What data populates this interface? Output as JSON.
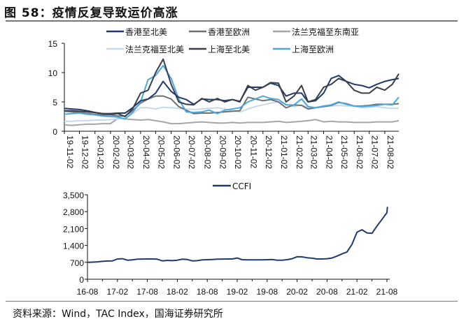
{
  "title": "图 58：疫情反复导致运价高涨",
  "source": "资料来源：Wind，TAC Index，国海证券研究所",
  "chart_data": [
    {
      "type": "line",
      "title": "",
      "xlabel": "",
      "ylabel": "",
      "ylim": [
        0,
        15
      ],
      "yticks": [
        "0",
        "5",
        "10",
        "15"
      ],
      "xticks": [
        "19-11-02",
        "19-12-02",
        "20-01-02",
        "20-02-02",
        "20-03-02",
        "20-04-02",
        "20-05-02",
        "20-06-02",
        "20-07-02",
        "20-08-02",
        "20-09-02",
        "20-10-02",
        "20-11-02",
        "20-12-02",
        "21-01-02",
        "21-02-02",
        "21-03-02",
        "21-04-02",
        "21-05-02",
        "21-06-02",
        "21-07-02",
        "21-08-02"
      ],
      "xlim": [
        "2019-11-02",
        "2021-08-30"
      ],
      "grid": false,
      "legend": "top",
      "x": [
        "2019-11-02",
        "2019-11-17",
        "2019-12-02",
        "2019-12-17",
        "2020-01-02",
        "2020-01-17",
        "2020-02-02",
        "2020-02-17",
        "2020-03-02",
        "2020-03-17",
        "2020-04-02",
        "2020-04-17",
        "2020-05-02",
        "2020-05-17",
        "2020-06-02",
        "2020-06-17",
        "2020-07-02",
        "2020-07-17",
        "2020-08-02",
        "2020-08-17",
        "2020-09-02",
        "2020-09-17",
        "2020-10-02",
        "2020-10-17",
        "2020-11-02",
        "2020-11-17",
        "2020-12-02",
        "2020-12-17",
        "2021-01-02",
        "2021-01-17",
        "2021-02-02",
        "2021-02-17",
        "2021-03-02",
        "2021-03-17",
        "2021-04-02",
        "2021-04-17",
        "2021-05-02",
        "2021-05-17",
        "2021-06-02",
        "2021-06-17",
        "2021-07-02",
        "2021-07-17",
        "2021-08-02",
        "2021-08-17",
        "2021-08-30"
      ],
      "series": [
        {
          "name": "香港至北美",
          "color": "#1f3a6e",
          "values": [
            3.9,
            3.8,
            3.7,
            3.5,
            3.2,
            3.0,
            3.0,
            3.1,
            3.1,
            4.0,
            5.2,
            5.5,
            6.5,
            8.5,
            6.8,
            5.8,
            5.4,
            4.6,
            5.5,
            5.4,
            5.4,
            5.2,
            5.4,
            5.1,
            7.5,
            7.5,
            7.5,
            8.2,
            7.8,
            6.0,
            6.5,
            6.5,
            5.0,
            5.2,
            6.5,
            9.0,
            9.5,
            8.5,
            8.0,
            7.8,
            7.4,
            8.0,
            8.5,
            8.8,
            9.0
          ]
        },
        {
          "name": "香港至欧洲",
          "color": "#707070",
          "values": [
            3.4,
            3.3,
            3.2,
            3.0,
            2.9,
            2.8,
            2.8,
            2.6,
            2.6,
            3.5,
            4.8,
            5.5,
            6.0,
            6.0,
            5.5,
            4.2,
            3.6,
            3.0,
            3.1,
            3.1,
            3.2,
            3.3,
            3.4,
            3.5,
            5.8,
            5.5,
            5.2,
            5.4,
            5.0,
            4.0,
            4.5,
            4.4,
            3.8,
            4.0,
            4.2,
            4.4,
            4.9,
            4.7,
            4.3,
            4.3,
            4.4,
            4.6,
            4.6,
            4.6,
            4.7
          ]
        },
        {
          "name": "法兰克福至东南亚",
          "color": "#a6a6a6",
          "values": [
            1.1,
            1.0,
            1.1,
            1.2,
            1.2,
            1.3,
            1.3,
            2.2,
            2.1,
            2.0,
            1.9,
            2.0,
            1.8,
            1.6,
            1.3,
            1.3,
            1.4,
            1.5,
            1.6,
            1.5,
            1.4,
            1.4,
            1.5,
            1.4,
            1.5,
            1.5,
            1.5,
            1.6,
            1.7,
            1.5,
            1.6,
            1.7,
            1.8,
            2.0,
            1.6,
            1.7,
            1.6,
            1.6,
            1.5,
            1.5,
            1.5,
            1.6,
            1.6,
            1.6,
            1.8
          ]
        },
        {
          "name": "法兰克福至北美",
          "color": "#c5d9ee",
          "values": [
            1.7,
            1.7,
            1.8,
            1.8,
            1.9,
            1.9,
            2.0,
            2.1,
            2.2,
            3.0,
            4.0,
            4.0,
            3.8,
            4.1,
            4.0,
            3.9,
            3.8,
            3.7,
            3.8,
            3.9,
            4.0,
            3.8,
            3.5,
            3.3,
            3.8,
            4.2,
            4.5,
            4.8,
            5.0,
            4.6,
            4.2,
            4.5,
            4.0,
            4.1,
            4.2,
            4.3,
            4.4,
            4.3,
            4.3,
            4.0,
            4.1,
            4.2,
            4.0,
            3.9,
            3.9
          ]
        },
        {
          "name": "上海至北美",
          "color": "#3a3f4a",
          "values": [
            3.5,
            3.5,
            3.4,
            3.3,
            3.2,
            3.0,
            2.9,
            3.0,
            2.5,
            3.8,
            6.5,
            7.0,
            10.0,
            12.3,
            8.0,
            5.0,
            4.6,
            4.5,
            5.6,
            5.0,
            5.6,
            5.0,
            5.4,
            5.0,
            7.8,
            7.0,
            7.5,
            8.3,
            8.2,
            5.0,
            6.0,
            7.8,
            5.0,
            5.4,
            7.5,
            8.0,
            9.0,
            8.5,
            7.0,
            6.5,
            6.5,
            7.5,
            7.0,
            8.0,
            9.8
          ]
        },
        {
          "name": "上海至欧洲",
          "color": "#4aa8e0",
          "values": [
            2.9,
            3.0,
            3.1,
            2.9,
            2.8,
            2.6,
            2.5,
            2.4,
            2.1,
            3.2,
            5.0,
            8.8,
            9.5,
            11.2,
            9.0,
            5.5,
            3.3,
            3.2,
            3.3,
            3.6,
            3.0,
            3.6,
            3.8,
            4.0,
            5.0,
            5.5,
            6.0,
            5.6,
            5.4,
            4.5,
            4.5,
            5.5,
            4.2,
            4.0,
            4.3,
            4.5,
            5.0,
            4.6,
            4.3,
            4.2,
            4.3,
            4.4,
            4.6,
            4.5,
            5.8
          ]
        }
      ]
    },
    {
      "type": "line",
      "title": "",
      "xlabel": "",
      "ylabel": "",
      "ylim": [
        0,
        3500
      ],
      "yticks": [
        "0",
        "700",
        "1,400",
        "2,100",
        "2,800",
        "3,500"
      ],
      "xticks": [
        "16-08",
        "17-02",
        "17-08",
        "18-02",
        "18-08",
        "19-02",
        "19-08",
        "20-02",
        "20-08",
        "21-02",
        "21-08"
      ],
      "xlim": [
        "2016-08",
        "2021-08"
      ],
      "grid": false,
      "legend": "top",
      "x_start": "2016-08",
      "x_step": "month",
      "series": [
        {
          "name": "CCFI",
          "color": "#1f3a6e",
          "values": [
            700,
            710,
            720,
            740,
            755,
            760,
            840,
            850,
            790,
            800,
            830,
            835,
            840,
            840,
            830,
            760,
            780,
            770,
            790,
            830,
            820,
            760,
            770,
            800,
            810,
            820,
            830,
            835,
            840,
            840,
            880,
            810,
            800,
            800,
            800,
            805,
            810,
            815,
            790,
            790,
            810,
            850,
            930,
            925,
            890,
            870,
            840,
            840,
            850,
            880,
            960,
            1050,
            1130,
            1450,
            1950,
            2050,
            1920,
            1900,
            2200,
            2480,
            2760,
            3000
          ]
        }
      ]
    }
  ]
}
